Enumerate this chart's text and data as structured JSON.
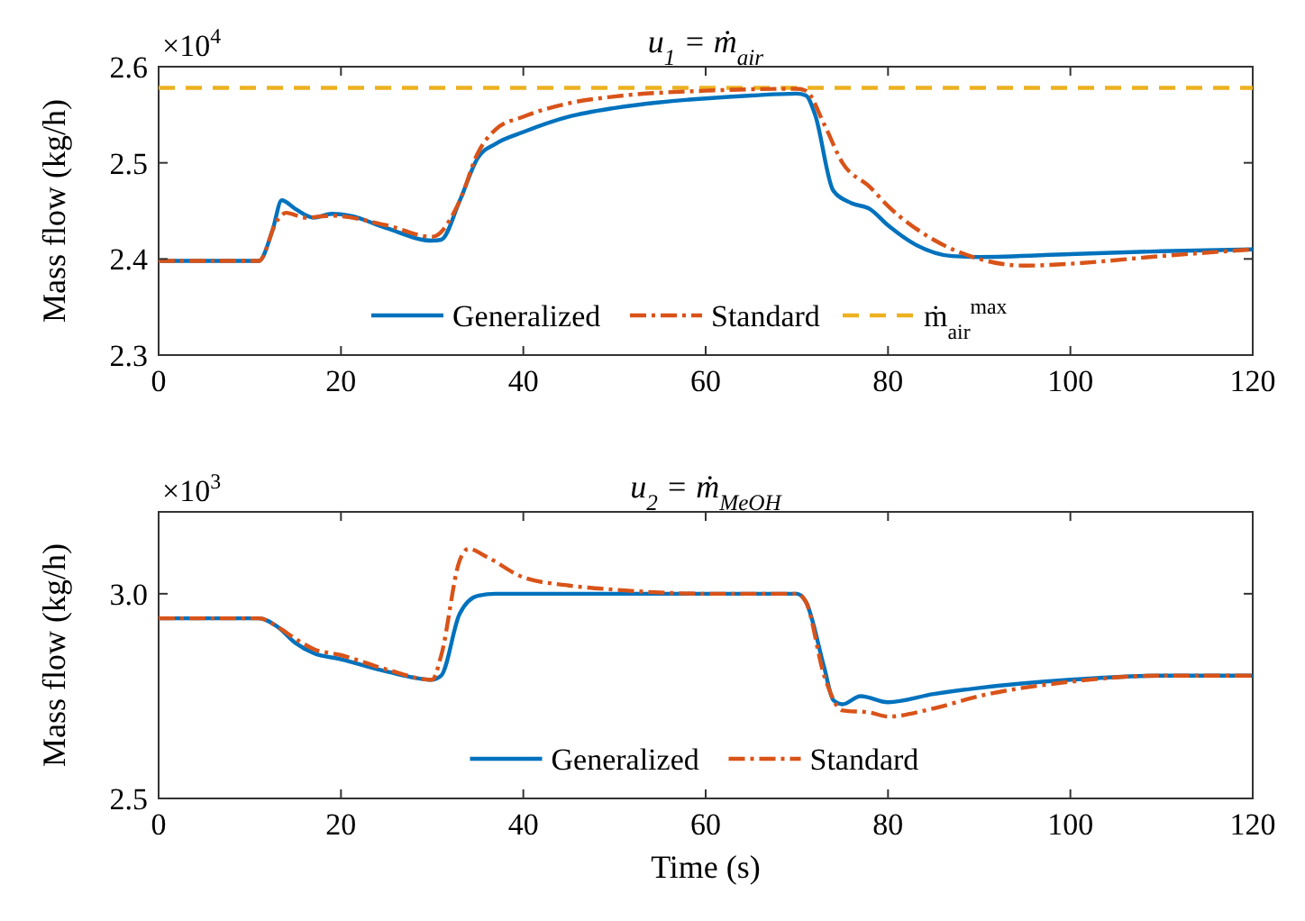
{
  "chart_data": [
    {
      "type": "line",
      "title": "u$_{1}$ = ṁ$_{air}$",
      "ylabel": "Mass flow (kg/h)",
      "annotations": [
        "×10$^{4}$"
      ],
      "xlim": [
        0,
        120
      ],
      "xticks": [
        0,
        20,
        40,
        60,
        80,
        100,
        120
      ],
      "ylim": [
        2.3,
        2.6
      ],
      "yticks": [
        2.3,
        2.4,
        2.5,
        2.6
      ],
      "legend": "bottom",
      "grid": false,
      "series": [
        {
          "name": "Generalized",
          "color": "#0072bd",
          "line_style": "solid",
          "x": [
            0,
            11,
            12.5,
            13.5,
            15,
            17,
            19,
            21,
            25,
            30,
            31,
            33,
            35,
            37,
            40,
            45,
            50,
            55,
            60,
            65,
            70,
            71,
            72,
            74,
            76,
            78,
            80,
            83,
            87,
            90,
            100,
            110,
            120
          ],
          "values": [
            2.398,
            2.398,
            2.43,
            2.461,
            2.452,
            2.443,
            2.447,
            2.445,
            2.432,
            2.419,
            2.42,
            2.46,
            2.505,
            2.52,
            2.532,
            2.548,
            2.557,
            2.563,
            2.567,
            2.57,
            2.572,
            2.57,
            2.55,
            2.471,
            2.458,
            2.452,
            2.435,
            2.415,
            2.403,
            2.402,
            2.405,
            2.408,
            2.41
          ]
        },
        {
          "name": "Standard",
          "color": "#d95319",
          "line_style": "dashed",
          "x": [
            0,
            11,
            13,
            14,
            16,
            19,
            25,
            30,
            33,
            35,
            37,
            40,
            45,
            50,
            60,
            70,
            71,
            73,
            75,
            78,
            80,
            85,
            90,
            95,
            100,
            110,
            120
          ],
          "values": [
            2.398,
            2.398,
            2.44,
            2.448,
            2.443,
            2.445,
            2.435,
            2.423,
            2.46,
            2.51,
            2.535,
            2.548,
            2.562,
            2.569,
            2.575,
            2.577,
            2.575,
            2.54,
            2.5,
            2.475,
            2.455,
            2.42,
            2.4,
            2.393,
            2.395,
            2.403,
            2.41
          ]
        }
      ],
      "ref_lines": [
        {
          "axis": "y",
          "value": 2.578,
          "label": "ṁ$_{air}$$^{max}$",
          "color": "#edb120",
          "line_style": "dashed"
        }
      ]
    },
    {
      "type": "line",
      "title": "u$_{2}$ = ṁ$_{MeOH}$",
      "xlabel": "Time (s)",
      "ylabel": "Mass flow (kg/h)",
      "annotations": [
        "×10$^{3}$"
      ],
      "xlim": [
        0,
        120
      ],
      "xticks": [
        0,
        20,
        40,
        60,
        80,
        100,
        120
      ],
      "ylim": [
        2.5,
        3.2
      ],
      "yticks": [
        2.5,
        {
          "value": 3,
          "label": "3.0"
        }
      ],
      "legend": "bottom",
      "grid": false,
      "series": [
        {
          "name": "Generalized",
          "color": "#0072bd",
          "line_style": "solid",
          "x": [
            0,
            11,
            13,
            15,
            17,
            20,
            25,
            30,
            31,
            33,
            35,
            37,
            40,
            70,
            71,
            73,
            74,
            75,
            77,
            80,
            85,
            90,
            100,
            110,
            120
          ],
          "values": [
            2.94,
            2.94,
            2.92,
            2.88,
            2.855,
            2.84,
            2.81,
            2.79,
            2.8,
            2.95,
            2.995,
            3.0,
            3.0,
            3.0,
            2.98,
            2.82,
            2.74,
            2.73,
            2.75,
            2.735,
            2.755,
            2.77,
            2.79,
            2.8,
            2.8
          ]
        },
        {
          "name": "Standard",
          "color": "#d95319",
          "line_style": "dashed",
          "x": [
            0,
            11,
            13,
            15,
            17,
            20,
            25,
            30,
            31,
            33,
            34,
            36,
            40,
            45,
            50,
            60,
            70,
            71,
            73,
            75,
            78,
            80,
            85,
            90,
            100,
            110,
            120
          ],
          "values": [
            2.94,
            2.94,
            2.92,
            2.89,
            2.865,
            2.85,
            2.815,
            2.79,
            2.85,
            3.08,
            3.11,
            3.09,
            3.04,
            3.02,
            3.01,
            3.0,
            3.0,
            2.98,
            2.8,
            2.715,
            2.71,
            2.7,
            2.72,
            2.75,
            2.785,
            2.8,
            2.8
          ]
        }
      ]
    }
  ]
}
